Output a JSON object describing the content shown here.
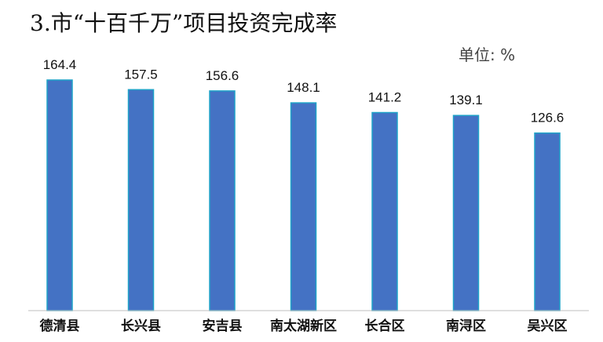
{
  "title": "3.市“十百千万”项目投资完成率",
  "unit_label": "单位: %",
  "colors": {
    "bar_fill": "#4472C4",
    "bar_stroke": "#1FA3C8",
    "axis": "#BFBFBF",
    "text": "#111111"
  },
  "chart_data": {
    "type": "bar",
    "title": "3.市“十百千万”项目投资完成率",
    "xlabel": "",
    "ylabel": "",
    "unit": "%",
    "categories": [
      "德清县",
      "长兴县",
      "安吉县",
      "南太湖新区",
      "长合区",
      "南浔区",
      "吴兴区"
    ],
    "values": [
      164.4,
      157.5,
      156.6,
      148.1,
      141.2,
      139.1,
      126.6
    ],
    "value_labels": [
      "164.4",
      "157.5",
      "156.6",
      "148.1",
      "141.2",
      "139.1",
      "126.6"
    ],
    "ylim": [
      0,
      170
    ],
    "grid": false,
    "legend": "none"
  }
}
